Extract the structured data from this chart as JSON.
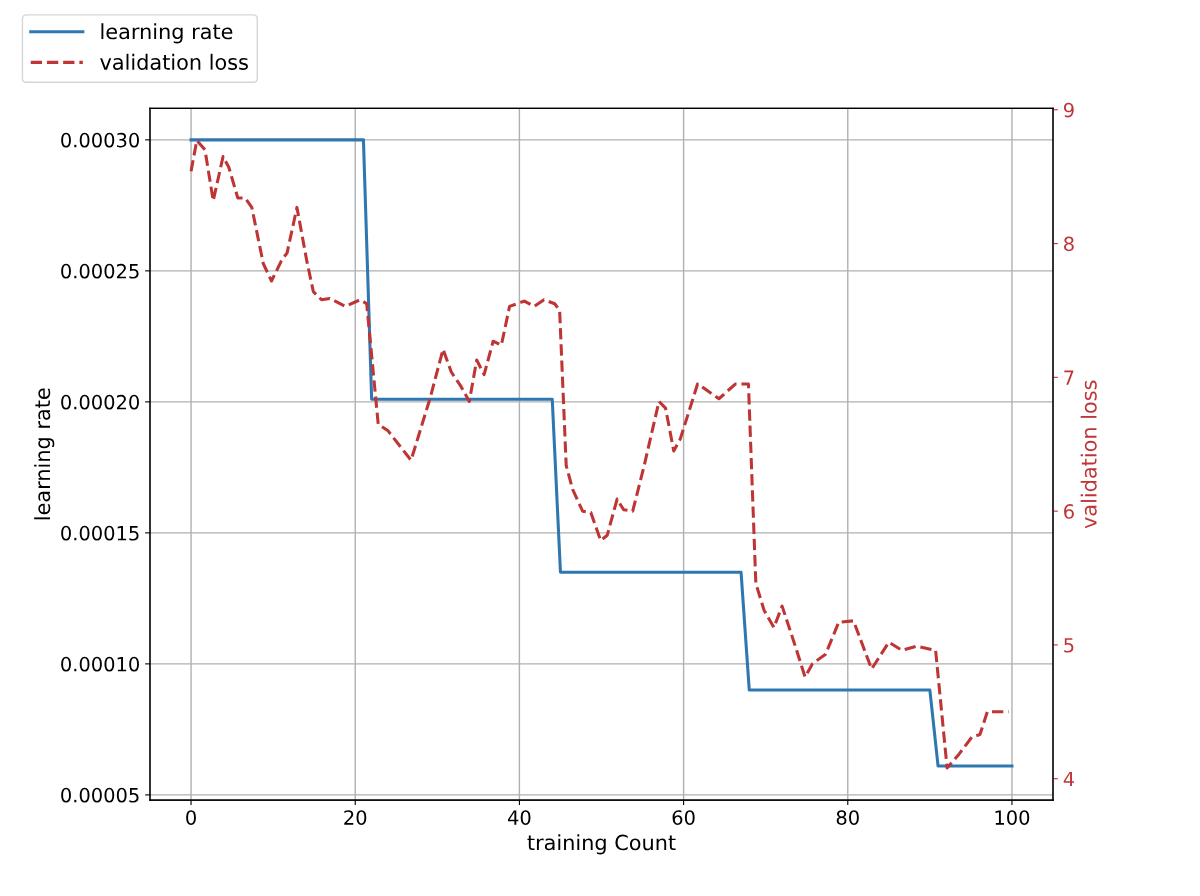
{
  "chart_data": {
    "type": "line",
    "xlabel": "training Count",
    "ylabel": "learning rate",
    "y2label": "validation loss",
    "xlim": [
      -5,
      105
    ],
    "xticks": [
      0,
      20,
      40,
      60,
      80,
      100
    ],
    "ylim": [
      4.8e-05,
      0.000312
    ],
    "yticks": [
      {
        "value": 5e-05,
        "label": "0.00005"
      },
      {
        "value": 0.0001,
        "label": "0.00010"
      },
      {
        "value": 0.00015,
        "label": "0.00015"
      },
      {
        "value": 0.0002,
        "label": "0.00020"
      },
      {
        "value": 0.00025,
        "label": "0.00025"
      },
      {
        "value": 0.0003,
        "label": "0.00030"
      }
    ],
    "y2lim": [
      3.84,
      9.01
    ],
    "y2ticks": [
      4,
      5,
      6,
      7,
      8,
      9
    ],
    "grid": true,
    "legend": "top left",
    "series": [
      {
        "name": "learning rate",
        "color": "#2f77b0",
        "line_style": "solid",
        "x": [
          0,
          21,
          22,
          44,
          45,
          67,
          68,
          90,
          91,
          100
        ],
        "values": [
          0.0003,
          0.0003,
          0.000201,
          0.000201,
          0.000135,
          0.000135,
          9e-05,
          9e-05,
          6.1e-05,
          6.1e-05
        ]
      },
      {
        "name": "validation loss",
        "color": "#bf3535",
        "line_style": "dashed",
        "axis": "y2",
        "x": [
          0,
          0.7,
          1.7,
          2.7,
          3.9,
          4.6,
          5.7,
          6.6,
          7.4,
          8.8,
          9.8,
          11,
          11.7,
          12.9,
          14.1,
          14.9,
          15.9,
          16.9,
          18.8,
          20.6,
          21.4,
          22.8,
          24,
          26.8,
          29.1,
          30.7,
          31.7,
          32.9,
          33.9,
          34.8,
          35.7,
          36.8,
          37.8,
          38.8,
          40.6,
          41.8,
          43,
          44.3,
          44.9,
          45.7,
          46.5,
          47.7,
          48.7,
          49.9,
          50.7,
          51.9,
          52.7,
          53.8,
          55.2,
          57,
          57.8,
          58.8,
          59.6,
          61.7,
          62.7,
          64.3,
          66.3,
          67.9,
          68.8,
          69.8,
          71,
          72,
          73.4,
          74.8,
          75.7,
          77.3,
          78.9,
          80.7,
          82.9,
          85,
          86.6,
          88.4,
          90.7,
          92.1,
          93.5,
          95.1,
          96.1,
          97,
          99.6
        ],
        "values": [
          8.54,
          8.77,
          8.7,
          8.32,
          8.65,
          8.57,
          8.34,
          8.34,
          8.27,
          7.85,
          7.72,
          7.87,
          7.93,
          8.27,
          7.87,
          7.64,
          7.58,
          7.59,
          7.53,
          7.58,
          7.55,
          6.65,
          6.6,
          6.38,
          6.84,
          7.21,
          7.04,
          6.93,
          6.82,
          7.13,
          7.02,
          7.27,
          7.24,
          7.53,
          7.57,
          7.53,
          7.58,
          7.55,
          7.5,
          6.34,
          6.16,
          6.0,
          5.99,
          5.78,
          5.82,
          6.09,
          6.01,
          6.0,
          6.34,
          6.82,
          6.77,
          6.45,
          6.54,
          6.95,
          6.91,
          6.84,
          6.95,
          6.95,
          5.46,
          5.26,
          5.13,
          5.29,
          5.03,
          4.76,
          4.86,
          4.93,
          5.17,
          5.18,
          4.82,
          5.02,
          4.96,
          4.99,
          4.96,
          4.08,
          4.18,
          4.31,
          4.33,
          4.5,
          4.5
        ]
      }
    ]
  }
}
